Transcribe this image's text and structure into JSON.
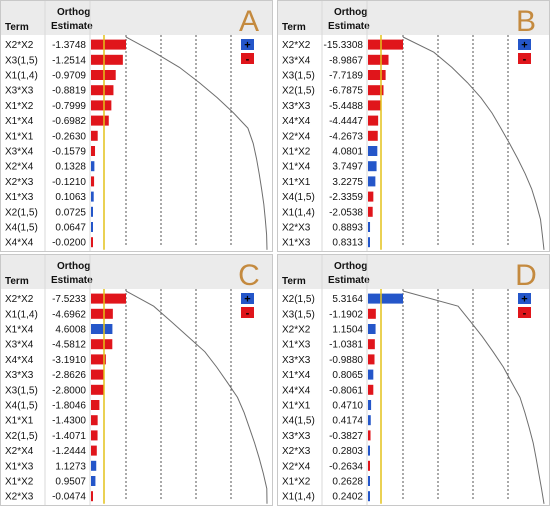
{
  "colors": {
    "positive": "#2456c9",
    "negative": "#e0151b",
    "header_bg": "#ebebeb",
    "pareto_line": "#6e6e6e",
    "ref_line": "#e3c21a",
    "letter": "#c48a3f"
  },
  "legend_items": [
    {
      "symbol": "+",
      "meaning": "positive",
      "color": "#2456c9"
    },
    {
      "symbol": "-",
      "meaning": "negative",
      "color": "#e0151b"
    }
  ],
  "header": {
    "term": "Term",
    "estimate_line1": "Orthog",
    "estimate_line2": "Estimate"
  },
  "chart_data": [
    {
      "type": "bar",
      "label": "A",
      "categories": [
        "X2*X2",
        "X3(1,5)",
        "X1(1,4)",
        "X3*X3",
        "X1*X2",
        "X1*X4",
        "X1*X1",
        "X3*X4",
        "X2*X4",
        "X2*X3",
        "X1*X3",
        "X2(1,5)",
        "X4(1,5)",
        "X4*X4"
      ],
      "values": [
        -1.3748,
        -1.2514,
        -0.9709,
        -0.8819,
        -0.7999,
        -0.6982,
        -0.263,
        -0.1579,
        0.1328,
        -0.121,
        0.1063,
        0.0725,
        0.0647,
        -0.02
      ],
      "labels": [
        "-1.3748",
        "-1.2514",
        "-0.9709",
        "-0.8819",
        "-0.7999",
        "-0.6982",
        "-0.2630",
        "-0.1579",
        "0.1328",
        "-0.1210",
        "0.1063",
        "0.0725",
        "0.0647",
        "-0.0200"
      ],
      "legend_placement": "top-right",
      "grid": true
    },
    {
      "type": "bar",
      "label": "B",
      "categories": [
        "X2*X2",
        "X3*X4",
        "X3(1,5)",
        "X2(1,5)",
        "X3*X3",
        "X4*X4",
        "X2*X4",
        "X1*X2",
        "X1*X4",
        "X1*X1",
        "X4(1,5)",
        "X1(1,4)",
        "X2*X3",
        "X1*X3"
      ],
      "values": [
        -15.3308,
        -8.9867,
        -7.7189,
        -6.7875,
        -5.4488,
        -4.4447,
        -4.2673,
        4.0801,
        3.7497,
        3.2275,
        -2.3359,
        -2.0538,
        0.8893,
        0.8313
      ],
      "labels": [
        "-15.3308",
        "-8.9867",
        "-7.7189",
        "-6.7875",
        "-5.4488",
        "-4.4447",
        "-4.2673",
        "4.0801",
        "3.7497",
        "3.2275",
        "-2.3359",
        "-2.0538",
        "0.8893",
        "0.8313"
      ],
      "legend_placement": "top-right",
      "grid": true
    },
    {
      "type": "bar",
      "label": "C",
      "categories": [
        "X2*X2",
        "X1(1,4)",
        "X1*X4",
        "X3*X4",
        "X4*X4",
        "X3*X3",
        "X3(1,5)",
        "X4(1,5)",
        "X1*X1",
        "X2(1,5)",
        "X2*X4",
        "X1*X3",
        "X1*X2",
        "X2*X3"
      ],
      "values": [
        -7.5233,
        -4.6962,
        4.6008,
        -4.5812,
        -3.191,
        -2.8626,
        -2.8,
        -1.8046,
        -1.43,
        -1.4071,
        -1.2444,
        1.1273,
        0.9507,
        -0.0474
      ],
      "labels": [
        "-7.5233",
        "-4.6962",
        "4.6008",
        "-4.5812",
        "-3.1910",
        "-2.8626",
        "-2.8000",
        "-1.8046",
        "-1.4300",
        "-1.4071",
        "-1.2444",
        "1.1273",
        "0.9507",
        "-0.0474"
      ],
      "legend_placement": "top-right",
      "grid": true
    },
    {
      "type": "bar",
      "label": "D",
      "categories": [
        "X2(1,5)",
        "X3(1,5)",
        "X2*X2",
        "X1*X3",
        "X3*X3",
        "X1*X4",
        "X4*X4",
        "X1*X1",
        "X4(1,5)",
        "X3*X3",
        "X2*X3",
        "X2*X4",
        "X1*X2",
        "X1(1,4)"
      ],
      "values": [
        5.3164,
        -1.1902,
        1.1504,
        -1.0381,
        -0.988,
        0.8065,
        -0.8061,
        0.471,
        0.4174,
        -0.3827,
        0.2803,
        -0.2634,
        0.2628,
        0.2402
      ],
      "labels": [
        "5.3164",
        "-1.1902",
        "1.1504",
        "-1.0381",
        "-0.9880",
        "0.8065",
        "-0.8061",
        "0.4710",
        "0.4174",
        "-0.3827",
        "0.2803",
        "-0.2634",
        "0.2628",
        "0.2402"
      ],
      "legend_placement": "top-right",
      "grid": true
    }
  ]
}
